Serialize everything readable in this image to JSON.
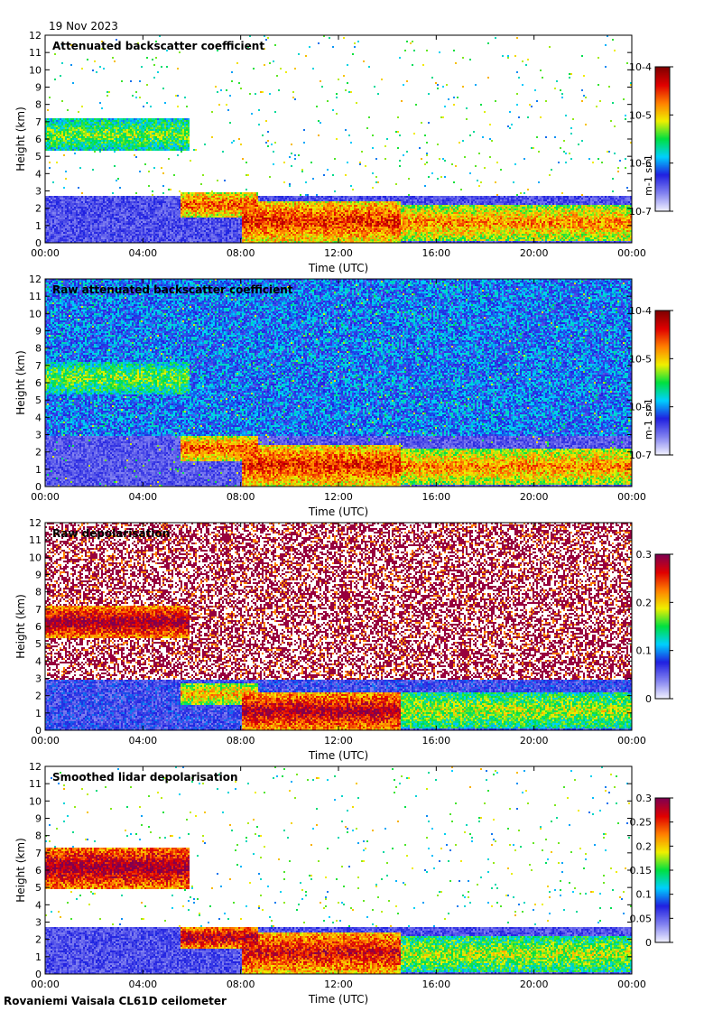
{
  "header": {
    "date": "19 Nov 2023"
  },
  "footer": {
    "site": "Rovaniemi Vaisala CL61D ceilometer"
  },
  "chart_data": [
    {
      "type": "heatmap",
      "title": "Attenuated backscatter coefficient",
      "xlabel": "Time (UTC)",
      "ylabel": "Height (km)",
      "xticks": [
        "00:00",
        "04:00",
        "08:00",
        "12:00",
        "16:00",
        "20:00",
        "00:00"
      ],
      "xlim_hours": [
        0,
        24
      ],
      "yticks": [
        0,
        1,
        2,
        3,
        4,
        5,
        6,
        7,
        8,
        9,
        10,
        11,
        12
      ],
      "ylim": [
        0,
        12
      ],
      "colorbar": {
        "scale": "log",
        "min": 1e-07,
        "max": 0.0001,
        "ticks": [
          "10-7",
          "10-6",
          "10-5",
          "10-4"
        ],
        "unit": "m-1 sr-1",
        "colormap": [
          "#f0f0ff",
          "#8080f0",
          "#2020e0",
          "#00d0ff",
          "#00e040",
          "#f0f000",
          "#ff8000",
          "#e00000",
          "#800000"
        ]
      },
      "noise": "low",
      "layers": [
        {
          "start_h": 0.0,
          "end_h": 5.9,
          "base_km": 5.4,
          "top_km": 7.2,
          "level": 0.55
        },
        {
          "start_h": 5.5,
          "end_h": 8.7,
          "base_km": 1.5,
          "top_km": 3.0,
          "level": 0.8
        },
        {
          "start_h": 8.0,
          "end_h": 14.5,
          "base_km": 0.1,
          "top_km": 2.5,
          "level": 0.85
        },
        {
          "start_h": 14.5,
          "end_h": 24.0,
          "base_km": 0.2,
          "top_km": 2.2,
          "level": 0.75
        }
      ]
    },
    {
      "type": "heatmap",
      "title": "Raw attenuated backscatter coefficient",
      "xlabel": "Time (UTC)",
      "ylabel": "Height (km)",
      "xticks": [
        "00:00",
        "04:00",
        "08:00",
        "12:00",
        "16:00",
        "20:00",
        "00:00"
      ],
      "xlim_hours": [
        0,
        24
      ],
      "yticks": [
        0,
        1,
        2,
        3,
        4,
        5,
        6,
        7,
        8,
        9,
        10,
        11,
        12
      ],
      "ylim": [
        0,
        12
      ],
      "colorbar": {
        "scale": "log",
        "min": 1e-07,
        "max": 0.0001,
        "ticks": [
          "10-7",
          "10-6",
          "10-5",
          "10-4"
        ],
        "unit": "m-1 sr-1",
        "colormap": [
          "#f0f0ff",
          "#8080f0",
          "#2020e0",
          "#00d0ff",
          "#00e040",
          "#f0f000",
          "#ff8000",
          "#e00000",
          "#800000"
        ]
      },
      "noise": "high",
      "layers": [
        {
          "start_h": 0.0,
          "end_h": 5.9,
          "base_km": 5.4,
          "top_km": 7.2,
          "level": 0.55
        },
        {
          "start_h": 5.5,
          "end_h": 8.7,
          "base_km": 1.5,
          "top_km": 3.0,
          "level": 0.8
        },
        {
          "start_h": 8.0,
          "end_h": 14.5,
          "base_km": 0.1,
          "top_km": 2.5,
          "level": 0.85
        },
        {
          "start_h": 14.5,
          "end_h": 24.0,
          "base_km": 0.2,
          "top_km": 2.2,
          "level": 0.75
        }
      ]
    },
    {
      "type": "heatmap",
      "title": "Raw depolarisation",
      "xlabel": "Time (UTC)",
      "ylabel": "Height (km)",
      "xticks": [
        "00:00",
        "04:00",
        "08:00",
        "12:00",
        "16:00",
        "20:00",
        "00:00"
      ],
      "xlim_hours": [
        0,
        24
      ],
      "yticks": [
        0,
        1,
        2,
        3,
        4,
        5,
        6,
        7,
        8,
        9,
        10,
        11,
        12
      ],
      "ylim": [
        0,
        12
      ],
      "colorbar": {
        "scale": "linear",
        "min": 0,
        "max": 0.3,
        "ticks": [
          "0",
          "0.1",
          "0.2",
          "0.3"
        ],
        "colormap": [
          "#f0f0ff",
          "#8080f0",
          "#2020e0",
          "#00d0ff",
          "#00e040",
          "#f0f000",
          "#ff8000",
          "#e00000",
          "#800050"
        ]
      },
      "noise": "depol",
      "layers": [
        {
          "start_h": 0.0,
          "end_h": 5.9,
          "base_km": 5.4,
          "top_km": 7.2,
          "level": 0.98
        },
        {
          "start_h": 5.5,
          "end_h": 8.7,
          "base_km": 1.5,
          "top_km": 2.8,
          "level": 0.7
        },
        {
          "start_h": 8.0,
          "end_h": 14.5,
          "base_km": 0.1,
          "top_km": 2.2,
          "level": 0.95
        },
        {
          "start_h": 14.5,
          "end_h": 24.0,
          "base_km": 0.2,
          "top_km": 2.2,
          "level": 0.6
        }
      ]
    },
    {
      "type": "heatmap",
      "title": "Smoothed lidar depolarisation",
      "xlabel": "Time (UTC)",
      "ylabel": "Height (km)",
      "xticks": [
        "00:00",
        "04:00",
        "08:00",
        "12:00",
        "16:00",
        "20:00",
        "00:00"
      ],
      "xlim_hours": [
        0,
        24
      ],
      "yticks": [
        0,
        1,
        2,
        3,
        4,
        5,
        6,
        7,
        8,
        9,
        10,
        11,
        12
      ],
      "ylim": [
        0,
        12
      ],
      "colorbar": {
        "scale": "linear",
        "min": 0,
        "max": 0.3,
        "ticks": [
          "0",
          "0.05",
          "0.1",
          "0.15",
          "0.2",
          "0.25",
          "0.3"
        ],
        "colormap": [
          "#f0f0ff",
          "#8080f0",
          "#2020e0",
          "#00d0ff",
          "#00e040",
          "#f0f000",
          "#ff8000",
          "#e00000",
          "#800050"
        ]
      },
      "noise": "low",
      "layers": [
        {
          "start_h": 0.0,
          "end_h": 5.9,
          "base_km": 5.0,
          "top_km": 7.4,
          "level": 0.98
        },
        {
          "start_h": 5.5,
          "end_h": 8.7,
          "base_km": 1.5,
          "top_km": 2.8,
          "level": 0.95
        },
        {
          "start_h": 8.0,
          "end_h": 14.5,
          "base_km": 0.1,
          "top_km": 2.5,
          "level": 0.9
        },
        {
          "start_h": 14.5,
          "end_h": 24.0,
          "base_km": 0.2,
          "top_km": 2.2,
          "level": 0.6
        }
      ]
    }
  ]
}
